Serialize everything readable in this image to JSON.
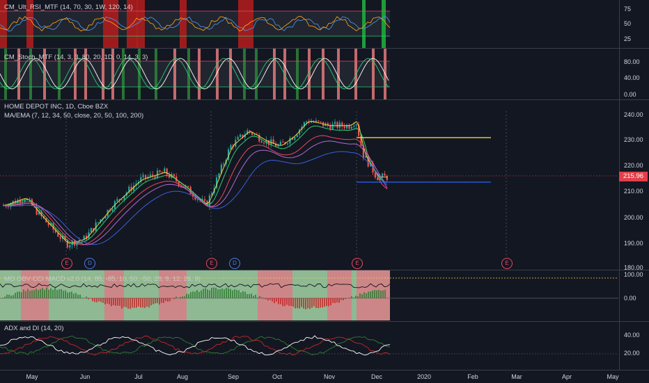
{
  "panes": {
    "rsi": {
      "title": "CM_Ult_RSI_MTF (14, 70, 30, 1W, 120, 14)",
      "ticks": [
        "75",
        "50",
        "25"
      ]
    },
    "stoch": {
      "title": "CM_Stoch_MTF (14, 3, 3, 80, 20, 1D, 0, 14, 3, 3)",
      "ticks": [
        "80.00",
        "40.00",
        "0.00"
      ]
    },
    "price": {
      "title": "HOME DEPOT INC, 1D, Cboe BZX",
      "ma_label": "MA/EMA (7, 12, 34, 50, close, 20, 50, 100, 200)",
      "ticks": [
        "240.00",
        "230.00",
        "220.00",
        "210.00",
        "200.00",
        "190.00",
        "180.00"
      ],
      "last_price": "215.96"
    },
    "macd": {
      "title": "MO OBV CCI MACD v2.0 (14, 85, -85, 10, 50, -50, 28, 9, 12, 26, 9)",
      "ticks": [
        "100.00",
        "0.00"
      ]
    },
    "adx": {
      "title": "ADX and DI (14, 20)",
      "ticks": [
        "40.00",
        "20.00"
      ]
    }
  },
  "events": [
    {
      "type": "E",
      "label": "E"
    },
    {
      "type": "D",
      "label": "D"
    },
    {
      "type": "E",
      "label": "E"
    },
    {
      "type": "D",
      "label": "D"
    },
    {
      "type": "E",
      "label": "E"
    },
    {
      "type": "E",
      "label": "E"
    }
  ],
  "time_axis": [
    "May",
    "Jun",
    "Jul",
    "Aug",
    "Sep",
    "Oct",
    "Nov",
    "Dec",
    "2020",
    "Feb",
    "Mar",
    "Apr",
    "May"
  ],
  "colors": {
    "background": "#131722",
    "up": "#26a69a",
    "down": "#ef5350",
    "resistance": "#ffeb3b",
    "support": "#2962ff",
    "last_price": "#e3404a"
  }
}
